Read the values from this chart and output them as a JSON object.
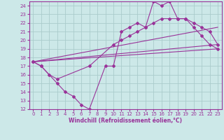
{
  "background_color": "#cce8e8",
  "grid_color": "#aacccc",
  "line_color": "#993399",
  "marker_color": "#993399",
  "xlabel": "Windchill (Refroidissement éolien,°C)",
  "xlim": [
    -0.5,
    23.5
  ],
  "ylim": [
    12,
    24.5
  ],
  "xticks": [
    0,
    1,
    2,
    3,
    4,
    5,
    6,
    7,
    8,
    9,
    10,
    11,
    12,
    13,
    14,
    15,
    16,
    17,
    18,
    19,
    20,
    21,
    22,
    23
  ],
  "yticks": [
    12,
    13,
    14,
    15,
    16,
    17,
    18,
    19,
    20,
    21,
    22,
    23,
    24
  ],
  "line1_x": [
    0,
    1,
    3,
    4,
    5,
    6,
    7,
    9,
    10,
    11,
    12,
    13,
    14,
    15,
    16,
    17,
    18,
    19,
    20,
    21,
    22,
    23
  ],
  "line1_y": [
    17.5,
    17.0,
    15.0,
    14.0,
    13.5,
    12.5,
    12.0,
    17.0,
    17.0,
    21.0,
    21.5,
    22.0,
    21.5,
    24.5,
    24.0,
    24.5,
    22.5,
    22.5,
    21.5,
    20.5,
    19.5,
    19.0
  ],
  "line2_x": [
    0,
    1,
    2,
    3,
    7,
    10,
    11,
    12,
    13,
    14,
    15,
    16,
    17,
    18,
    19,
    20,
    21,
    22,
    23
  ],
  "line2_y": [
    17.5,
    17.0,
    16.0,
    15.5,
    17.0,
    19.5,
    20.0,
    20.5,
    21.0,
    21.5,
    22.0,
    22.5,
    22.5,
    22.5,
    22.5,
    22.0,
    21.5,
    21.0,
    19.5
  ],
  "line3_x": [
    0,
    23
  ],
  "line3_y": [
    17.5,
    19.0
  ],
  "line4_x": [
    0,
    23
  ],
  "line4_y": [
    17.5,
    19.5
  ],
  "line5_x": [
    0,
    23
  ],
  "line5_y": [
    17.5,
    19.0
  ]
}
